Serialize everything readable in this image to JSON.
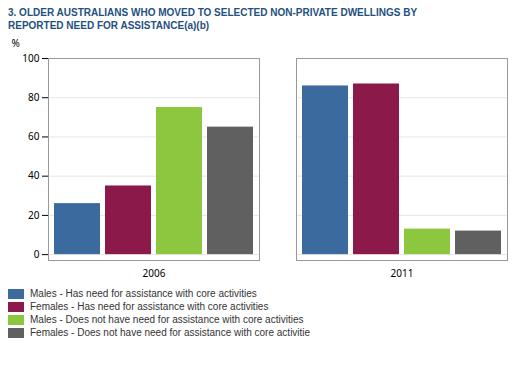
{
  "chart_data": {
    "type": "bar",
    "title": "3. OLDER AUSTRALIANS WHO MOVED TO SELECTED NON-PRIVATE DWELLINGS BY\nREPORTED NEED FOR ASSISTANCE(a)(b)",
    "title_color": "#1f5080",
    "ylabel": "%",
    "categories": [
      "2006",
      "2011"
    ],
    "series": [
      {
        "name": "Males - Has need for assistance with core activities",
        "color": "#3b6b9e",
        "values": [
          26,
          86
        ]
      },
      {
        "name": "Females - Has need for assistance with core activities",
        "color": "#8b1a4a",
        "values": [
          35,
          87
        ]
      },
      {
        "name": "Males - Does not have need for assistance with core activities",
        "color": "#8dc63f",
        "values": [
          75,
          13
        ]
      },
      {
        "name": "Females - Does not have need for assistance with core activitie",
        "color": "#606060",
        "values": [
          65,
          12
        ]
      }
    ],
    "ylim": [
      -3,
      100
    ],
    "yticks": [
      0,
      20,
      40,
      60,
      80,
      100
    ],
    "grid": true
  }
}
